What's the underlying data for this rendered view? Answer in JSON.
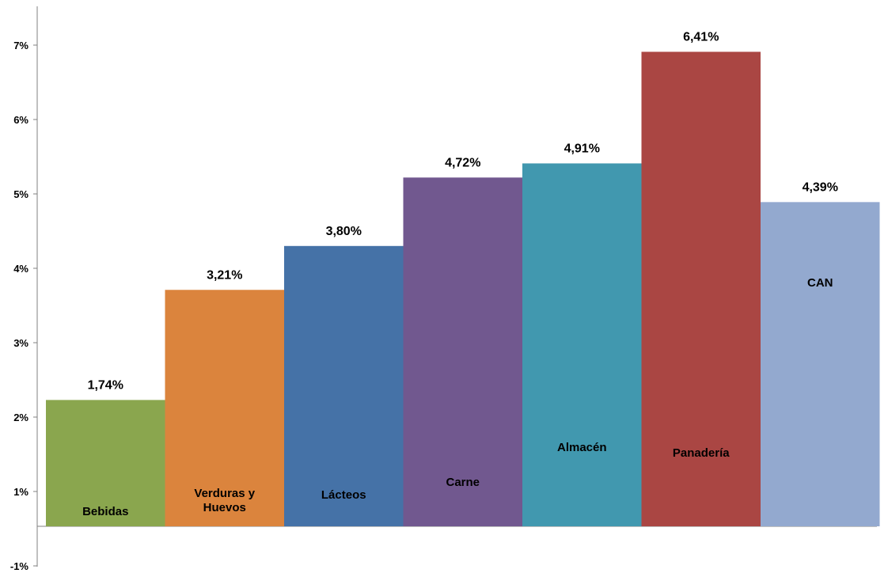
{
  "chart_data": {
    "type": "bar",
    "title": "",
    "xlabel": "",
    "ylabel": "",
    "ylim": [
      -1,
      7.5
    ],
    "yticks": [
      -1,
      1,
      2,
      3,
      4,
      5,
      6,
      7
    ],
    "ytick_labels": [
      "-1%",
      "1%",
      "2%",
      "3%",
      "4%",
      "5%",
      "6%",
      "7%"
    ],
    "grid": false,
    "legend": "none",
    "categories": [
      "Bebidas",
      "Verduras y Huevos",
      "Lácteos",
      "Carne",
      "Almacén",
      "Panadería",
      "CAN"
    ],
    "category_label_lines": [
      [
        "Bebidas"
      ],
      [
        "Verduras y",
        "Huevos"
      ],
      [
        "Lácteos"
      ],
      [
        "Carne"
      ],
      [
        "Almacén"
      ],
      [
        "Panadería"
      ],
      [
        "CAN"
      ]
    ],
    "values": [
      1.74,
      3.21,
      3.8,
      4.72,
      4.91,
      6.41,
      4.39
    ],
    "value_labels": [
      "1,74%",
      "3,21%",
      "3,80%",
      "4,72%",
      "4,91%",
      "6,41%",
      "4,39%"
    ],
    "bar_tops_on_axis": [
      2.23,
      3.71,
      4.3,
      5.22,
      5.41,
      6.91,
      4.89
    ],
    "colors": [
      "#8aa64e",
      "#db843d",
      "#4572a7",
      "#71588f",
      "#4198af",
      "#aa4643",
      "#93a9cf"
    ]
  }
}
